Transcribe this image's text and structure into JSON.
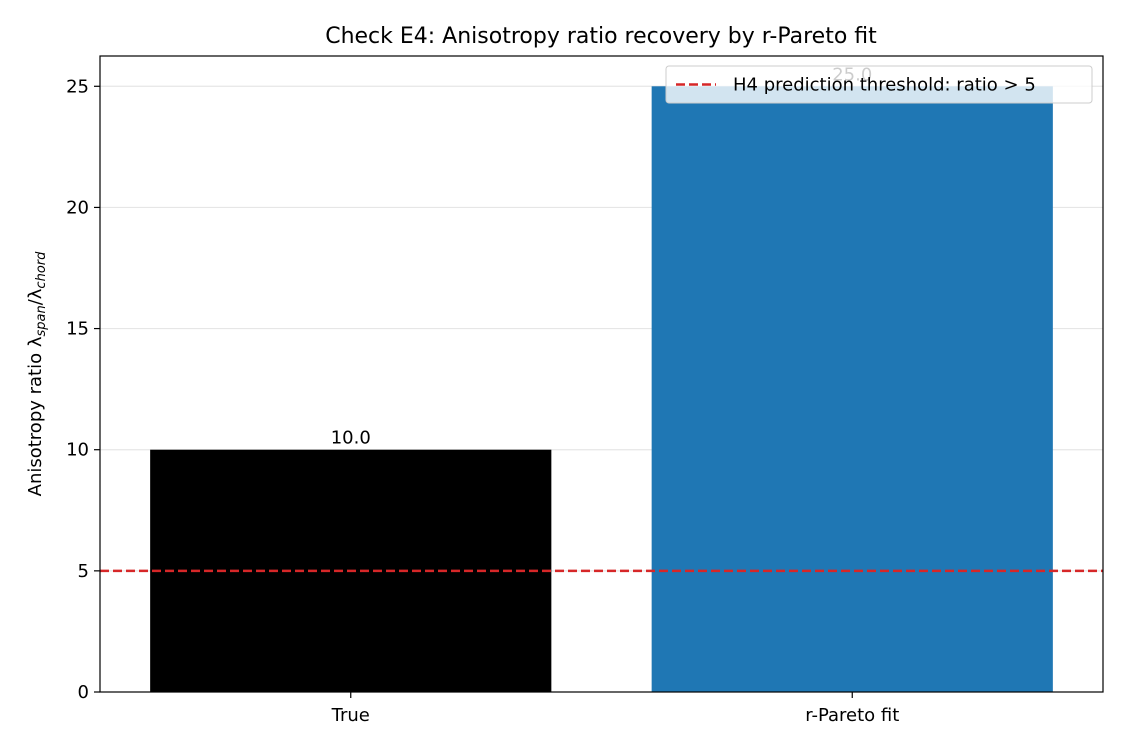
{
  "chart_data": {
    "type": "bar",
    "title": "Check E4: Anisotropy ratio recovery by r-Pareto fit",
    "ylabel_prefix": "Anisotropy ratio λ",
    "ylabel_sub1": "span",
    "ylabel_mid": "/λ",
    "ylabel_sub2": "chord",
    "xlabel": "",
    "categories": [
      "True",
      "r-Pareto fit"
    ],
    "values": [
      10.0,
      25.0
    ],
    "bar_labels": [
      "10.0",
      "25.0"
    ],
    "bar_colors": [
      "#000000",
      "#1f77b4"
    ],
    "ylim": [
      0,
      26.25
    ],
    "yticks": [
      0,
      5,
      10,
      15,
      20,
      25
    ],
    "ytick_labels": [
      "0",
      "5",
      "10",
      "15",
      "20",
      "25"
    ],
    "grid": "y",
    "threshold": {
      "value": 5,
      "color": "#d62728",
      "label": "H4 prediction threshold: ratio > 5"
    },
    "legend_position": "top-right"
  }
}
